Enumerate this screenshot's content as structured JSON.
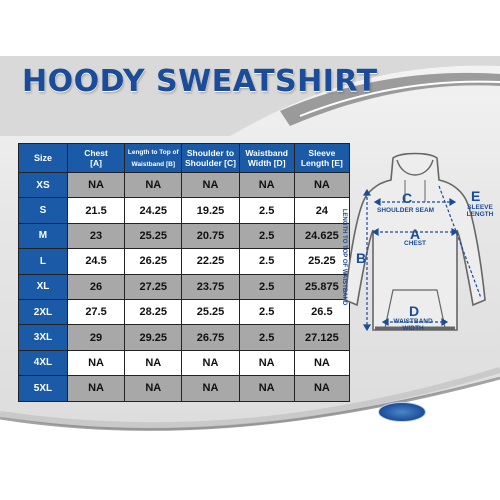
{
  "title": "HOODY SWEATSHIRT",
  "table": {
    "headers": [
      {
        "key": "size",
        "line1": "Size",
        "line2": ""
      },
      {
        "key": "chest",
        "line1": "Chest",
        "line2": "[A]"
      },
      {
        "key": "length",
        "line1": "Length to Top of",
        "line2": "Waistband [B]"
      },
      {
        "key": "shoulder",
        "line1": "Shoulder to",
        "line2": "Shoulder [C]"
      },
      {
        "key": "waistband",
        "line1": "Waistband",
        "line2": "Width [D]"
      },
      {
        "key": "sleeve",
        "line1": "Sleeve",
        "line2": "Length [E]"
      }
    ],
    "rows": [
      {
        "size": "XS",
        "values": [
          "NA",
          "NA",
          "NA",
          "NA",
          "NA"
        ]
      },
      {
        "size": "S",
        "values": [
          "21.5",
          "24.25",
          "19.25",
          "2.5",
          "24"
        ]
      },
      {
        "size": "M",
        "values": [
          "23",
          "25.25",
          "20.75",
          "2.5",
          "24.625"
        ]
      },
      {
        "size": "L",
        "values": [
          "24.5",
          "26.25",
          "22.25",
          "2.5",
          "25.25"
        ]
      },
      {
        "size": "XL",
        "values": [
          "26",
          "27.25",
          "23.75",
          "2.5",
          "25.875"
        ]
      },
      {
        "size": "2XL",
        "values": [
          "27.5",
          "28.25",
          "25.25",
          "2.5",
          "26.5"
        ]
      },
      {
        "size": "3XL",
        "values": [
          "29",
          "29.25",
          "26.75",
          "2.5",
          "27.125"
        ]
      },
      {
        "size": "4XL",
        "values": [
          "NA",
          "NA",
          "NA",
          "NA",
          "NA"
        ]
      },
      {
        "size": "5XL",
        "values": [
          "NA",
          "NA",
          "NA",
          "NA",
          "NA"
        ]
      }
    ]
  },
  "diagram": {
    "letter_a": "A",
    "label_a": "CHEST",
    "letter_b": "B",
    "label_b": "LENGTH TO TOP OF WAISTBAND",
    "letter_c": "C",
    "label_c": "SHOULDER SEAM",
    "letter_d": "D",
    "label_d_line1": "WAISTBAND",
    "label_d_line2": "WIDTH",
    "letter_e": "E",
    "label_e_line1": "SLEEVE",
    "label_e_line2": "LENGTH"
  },
  "colors": {
    "brand_blue": "#1a5aa6",
    "grey_row": "#a8a8a8"
  }
}
